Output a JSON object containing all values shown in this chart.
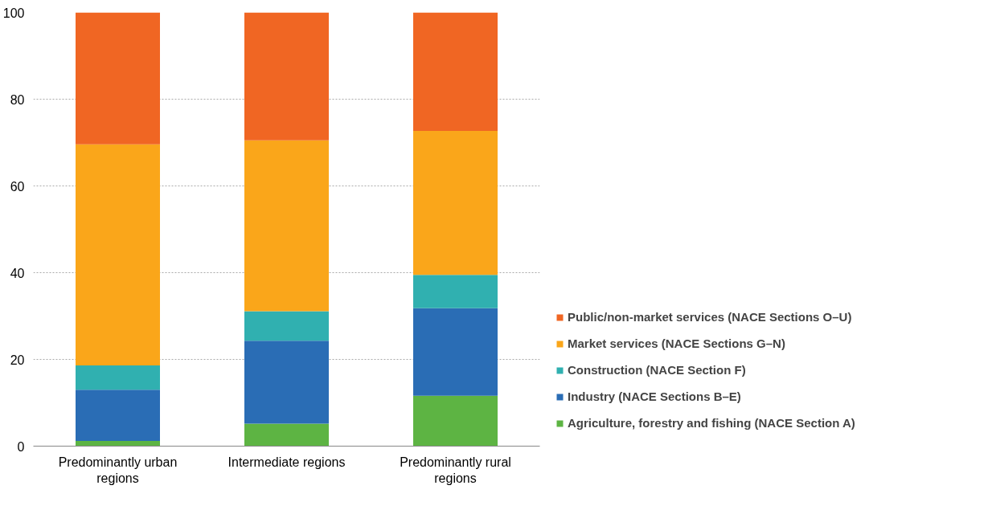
{
  "chart_data": {
    "type": "bar",
    "stacked": true,
    "categories": [
      "Predominantly urban regions",
      "Intermediate regions",
      "Predominantly rural regions"
    ],
    "series": [
      {
        "name": "Agriculture, forestry and fishing (NACE Section A)",
        "color": "#5db443",
        "values": [
          1.2,
          5.2,
          11.6
        ]
      },
      {
        "name": "Industry (NACE Sections B–E)",
        "color": "#2a6db5",
        "values": [
          11.8,
          19.1,
          20.2
        ]
      },
      {
        "name": "Construction (NACE Section F)",
        "color": "#30b0b0",
        "values": [
          5.6,
          6.8,
          7.7
        ]
      },
      {
        "name": "Market services (NACE Sections G–N)",
        "color": "#faa61a",
        "values": [
          51.0,
          39.4,
          33.2
        ]
      },
      {
        "name": "Public/non-market services (NACE Sections O–U)",
        "color": "#f06623",
        "values": [
          30.4,
          29.5,
          27.3
        ]
      }
    ],
    "ylim": [
      0,
      100
    ],
    "yticks": [
      0,
      20,
      40,
      60,
      80,
      100
    ],
    "grid": "y",
    "legend": "bottom right"
  }
}
